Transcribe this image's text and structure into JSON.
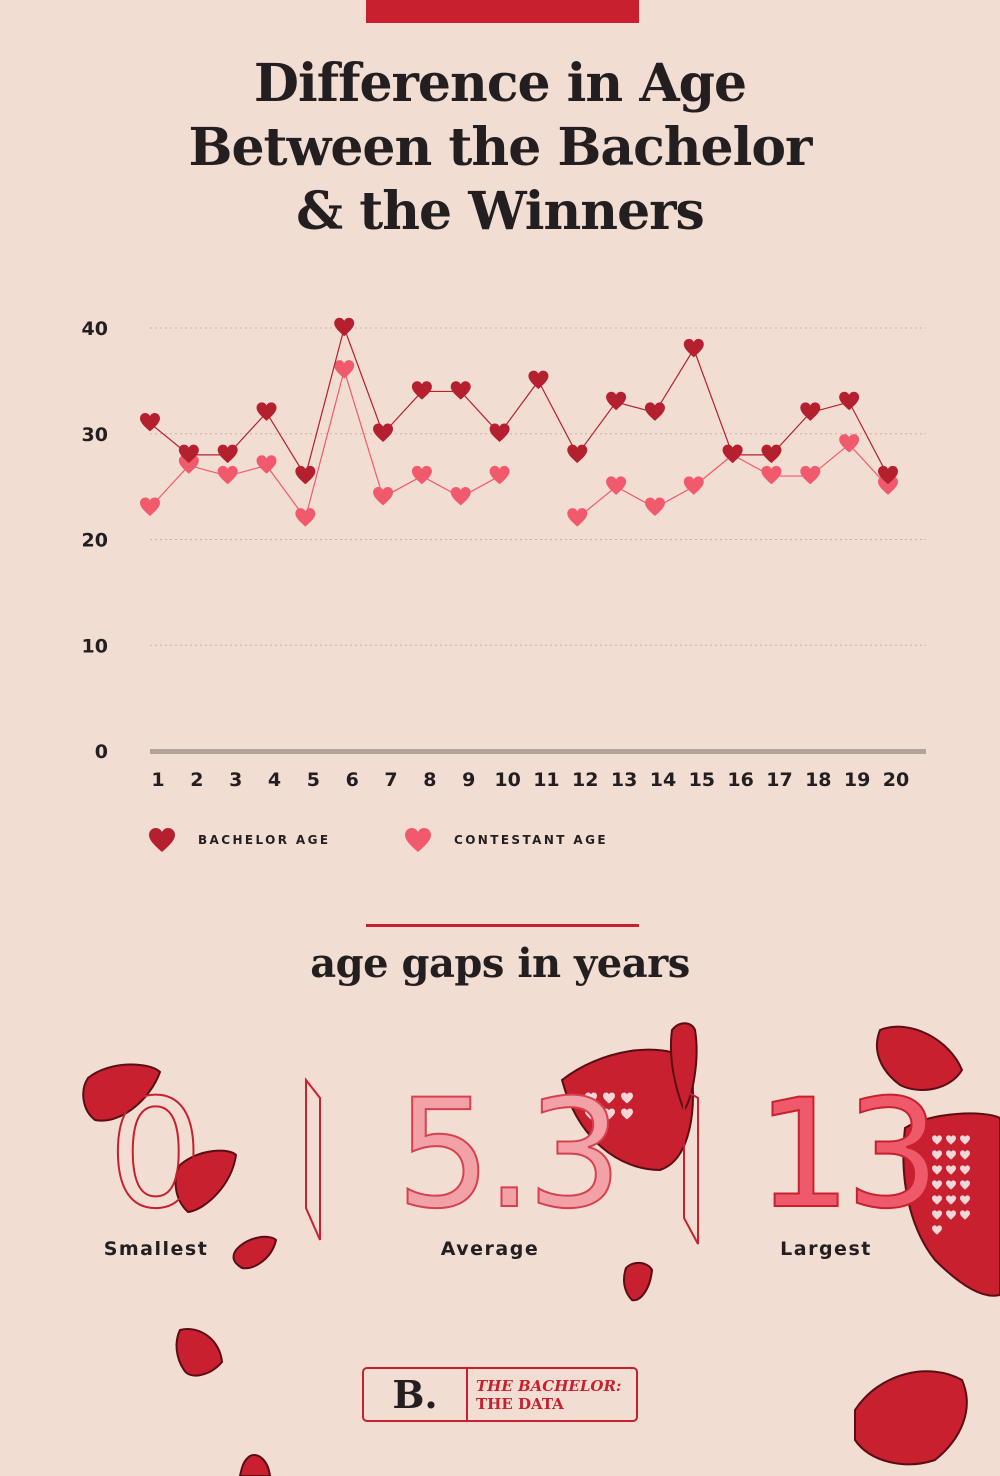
{
  "title_lines": [
    "Difference in Age",
    "Between the Bachelor",
    "& the Winners"
  ],
  "subtitle": "age gaps in years",
  "chart_data": {
    "type": "line",
    "title": "Difference in Age Between the Bachelor & the Winners",
    "xlabel": "",
    "ylabel": "",
    "ylim": [
      0,
      40
    ],
    "yticks": [
      0,
      10,
      20,
      30,
      40
    ],
    "grid": true,
    "legend_position": "bottom-left",
    "x": [
      1,
      2,
      3,
      4,
      5,
      6,
      7,
      8,
      9,
      10,
      11,
      12,
      13,
      14,
      15,
      16,
      17,
      18,
      19,
      20
    ],
    "series": [
      {
        "name": "BACHELOR AGE",
        "color": "#b5202f",
        "values": [
          31,
          28,
          28,
          32,
          26,
          40,
          30,
          34,
          34,
          30,
          35,
          28,
          33,
          32,
          38,
          28,
          28,
          32,
          33,
          26
        ]
      },
      {
        "name": "CONTESTANT AGE",
        "color": "#f15a6c",
        "values": [
          23,
          27,
          26,
          27,
          22,
          36,
          24,
          26,
          24,
          26,
          null,
          22,
          25,
          23,
          25,
          28,
          26,
          26,
          29,
          25
        ]
      }
    ]
  },
  "stats": [
    {
      "value": "0",
      "label": "Smallest"
    },
    {
      "value": "5.3",
      "label": "Average"
    },
    {
      "value": "13",
      "label": "Largest"
    }
  ],
  "footer": {
    "logo": "B.",
    "line1": "THE BACHELOR:",
    "line2": "THE DATA"
  },
  "colors": {
    "background": "#f2ddd2",
    "accent": "#c8202e",
    "petal": "#c8202e",
    "text": "#231f20"
  }
}
